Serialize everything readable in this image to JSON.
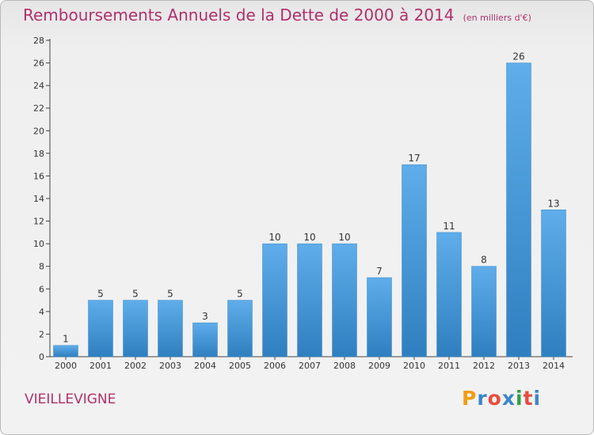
{
  "header": {
    "title": "Remboursements Annuels de la Dette de 2000 à 2014",
    "unit": "(en milliers d'€)"
  },
  "footer": {
    "commune": "VIEILLEVIGNE",
    "logo_text": "Proxiti",
    "logo_colors": [
      "#f39c12",
      "#3a87c8",
      "#e84c3d",
      "#3a87c8",
      "#2ea04a",
      "#e84c3d",
      "#3a87c8"
    ]
  },
  "chart_data": {
    "type": "bar",
    "title": "Remboursements Annuels de la Dette de 2000 à 2014",
    "categories": [
      "2000",
      "2001",
      "2002",
      "2003",
      "2004",
      "2005",
      "2006",
      "2007",
      "2008",
      "2009",
      "2010",
      "2011",
      "2012",
      "2013",
      "2014"
    ],
    "values": [
      1,
      5,
      5,
      5,
      3,
      5,
      10,
      10,
      10,
      7,
      17,
      11,
      8,
      26,
      13
    ],
    "ylim": [
      0,
      28
    ],
    "yticks": [
      "0",
      "2",
      "4",
      "6",
      "8",
      "10",
      "12",
      "14",
      "16",
      "18",
      "20",
      "22",
      "24",
      "26",
      "28"
    ],
    "grid": false,
    "bar_color": "#4a9ad9"
  }
}
